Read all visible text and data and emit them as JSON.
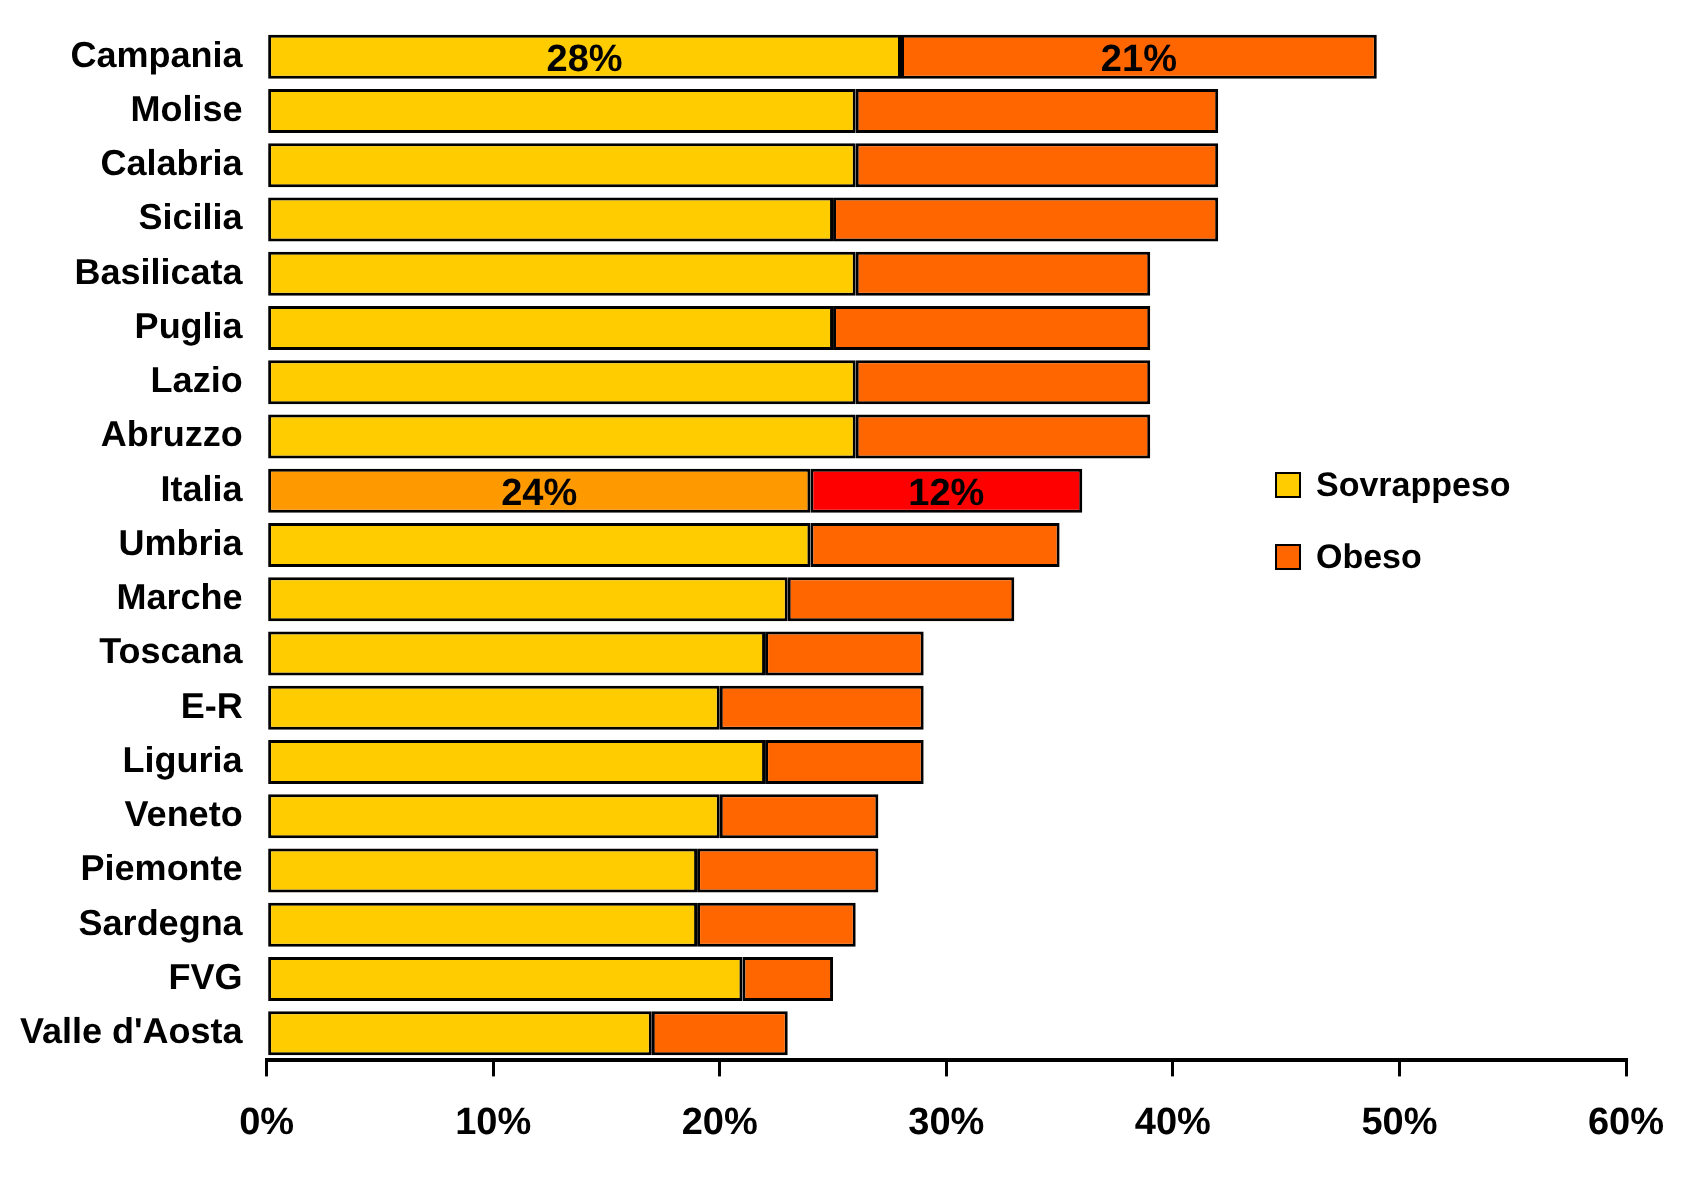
{
  "chart_data": {
    "type": "bar",
    "orientation": "horizontal",
    "stacked": true,
    "categories": [
      "Campania",
      "Molise",
      "Calabria",
      "Sicilia",
      "Basilicata",
      "Puglia",
      "Lazio",
      "Abruzzo",
      "Italia",
      "Umbria",
      "Marche",
      "Toscana",
      "E-R",
      "Liguria",
      "Veneto",
      "Piemonte",
      "Sardegna",
      "FVG",
      "Valle d'Aosta"
    ],
    "series": [
      {
        "name": "Sovrappeso",
        "color": "#ffcc00",
        "colors": [
          "#ffcc00",
          "#ffcc00",
          "#ffcc00",
          "#ffcc00",
          "#ffcc00",
          "#ffcc00",
          "#ffcc00",
          "#ffcc00",
          "#ff9900",
          "#ffcc00",
          "#ffcc00",
          "#ffcc00",
          "#ffcc00",
          "#ffcc00",
          "#ffcc00",
          "#ffcc00",
          "#ffcc00",
          "#ffcc00",
          "#ffcc00"
        ],
        "values": [
          28,
          26,
          26,
          25,
          26,
          25,
          26,
          26,
          24,
          24,
          23,
          22,
          20,
          22,
          20,
          19,
          19,
          21,
          17
        ],
        "value_labels": [
          "28%",
          null,
          null,
          null,
          null,
          null,
          null,
          null,
          "24%",
          null,
          null,
          null,
          null,
          null,
          null,
          null,
          null,
          null,
          null
        ]
      },
      {
        "name": "Obeso",
        "color": "#ff6600",
        "colors": [
          "#ff6600",
          "#ff6600",
          "#ff6600",
          "#ff6600",
          "#ff6600",
          "#ff6600",
          "#ff6600",
          "#ff6600",
          "#ff0000",
          "#ff6600",
          "#ff6600",
          "#ff6600",
          "#ff6600",
          "#ff6600",
          "#ff6600",
          "#ff6600",
          "#ff6600",
          "#ff6600",
          "#ff6600"
        ],
        "values": [
          21,
          16,
          16,
          17,
          13,
          14,
          13,
          13,
          12,
          11,
          10,
          7,
          9,
          7,
          7,
          8,
          7,
          4,
          6
        ],
        "value_labels": [
          "21%",
          null,
          null,
          null,
          null,
          null,
          null,
          null,
          "12%",
          null,
          null,
          null,
          null,
          null,
          null,
          null,
          null,
          null,
          null
        ]
      }
    ],
    "xlim": [
      0,
      60
    ],
    "xticks": [
      {
        "value": 0,
        "label": "0%"
      },
      {
        "value": 10,
        "label": "10%"
      },
      {
        "value": 20,
        "label": "20%"
      },
      {
        "value": 30,
        "label": "30%"
      },
      {
        "value": 40,
        "label": "40%"
      },
      {
        "value": 50,
        "label": "50%"
      },
      {
        "value": 60,
        "label": "60%"
      }
    ],
    "legend": "right",
    "grid": false
  }
}
